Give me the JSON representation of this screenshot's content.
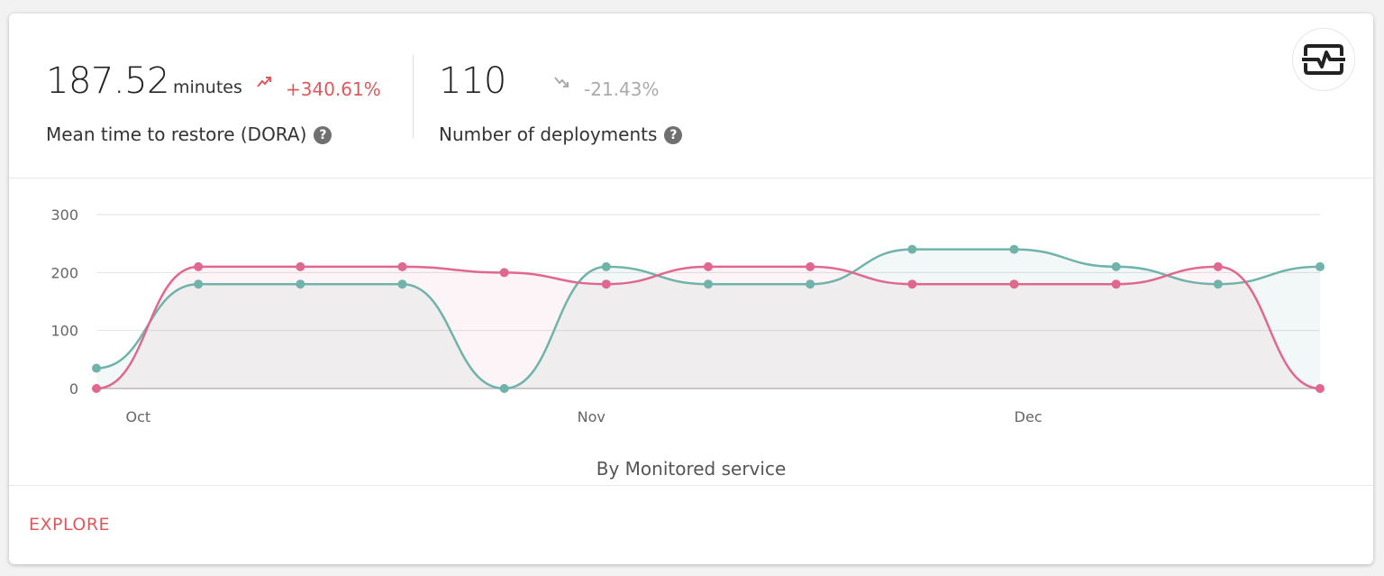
{
  "metrics": [
    {
      "value": "187.52",
      "unit": "minutes",
      "delta": "+340.61%",
      "trend": "up",
      "delta_color": "#e0585c",
      "label": "Mean time to restore (DORA)",
      "help": "?"
    },
    {
      "value": "110",
      "unit": "",
      "delta": "-21.43%",
      "trend": "down",
      "delta_color": "#aaaaaa",
      "label": "Number of deployments",
      "help": "?"
    }
  ],
  "toggle_icon": "chart-pulse-icon",
  "chart_data": {
    "type": "area",
    "title": "",
    "xlabel": "",
    "ylabel": "",
    "ylim": [
      0,
      300
    ],
    "yticks": [
      0,
      100,
      200,
      300
    ],
    "grid": true,
    "smooth": true,
    "x": [
      "Sep 28",
      "Oct 5",
      "Oct 12",
      "Oct 19",
      "Oct 26",
      "Nov 2",
      "Nov 9",
      "Nov 16",
      "Nov 23",
      "Nov 30",
      "Dec 7",
      "Dec 14",
      "Dec 21"
    ],
    "xticks": [
      {
        "label": "Oct",
        "at": "Oct 1"
      },
      {
        "label": "Nov",
        "at": "Nov 1"
      },
      {
        "label": "Dec",
        "at": "Dec 1"
      }
    ],
    "series": [
      {
        "color": "#6fb3aa",
        "values": [
          35,
          180,
          180,
          180,
          0,
          210,
          180,
          180,
          240,
          240,
          210,
          180,
          210
        ]
      },
      {
        "color": "#e0688f",
        "values": [
          0,
          210,
          210,
          210,
          200,
          180,
          210,
          210,
          180,
          180,
          180,
          210,
          0
        ]
      }
    ]
  },
  "caption": "By Monitored service",
  "footer": {
    "explore_label": "EXPLORE"
  }
}
